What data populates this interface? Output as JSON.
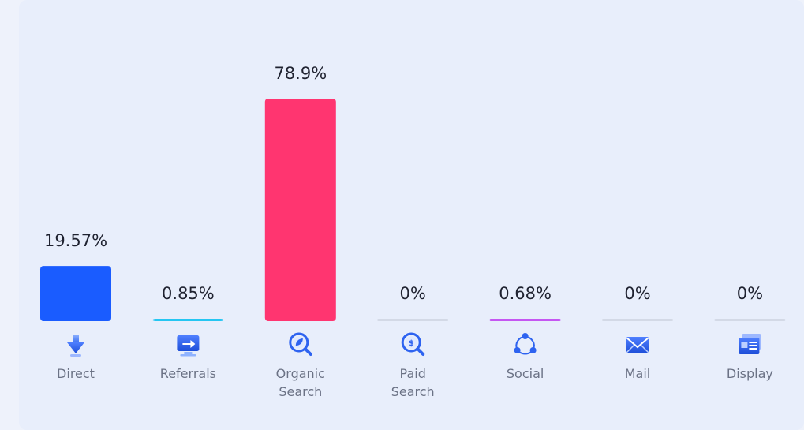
{
  "chart_data": {
    "type": "bar",
    "categories": [
      "Direct",
      "Referrals",
      "Organic Search",
      "Paid Search",
      "Social",
      "Mail",
      "Display"
    ],
    "values": [
      19.57,
      0.85,
      78.9,
      0,
      0.68,
      0,
      0
    ],
    "value_labels": [
      "19.57%",
      "0.85%",
      "78.9%",
      "0%",
      "0.68%",
      "0%",
      "0%"
    ],
    "category_labels": [
      [
        "Direct"
      ],
      [
        "Referrals"
      ],
      [
        "Organic",
        "Search"
      ],
      [
        "Paid",
        "Search"
      ],
      [
        "Social"
      ],
      [
        "Mail"
      ],
      [
        "Display"
      ]
    ],
    "icons": [
      "arrow-down-icon",
      "referral-monitor-icon",
      "organic-search-icon",
      "paid-search-icon",
      "social-share-icon",
      "mail-icon",
      "display-window-icon"
    ],
    "colors": [
      "#1a5cff",
      "#25c6f2",
      "#ff3570",
      "#d3d9e6",
      "#c557f2",
      "#d3d9e6",
      "#d3d9e6"
    ],
    "ylim": [
      0,
      80
    ],
    "grid": false,
    "legend": "none",
    "title": "",
    "xlabel": "",
    "ylabel": ""
  }
}
